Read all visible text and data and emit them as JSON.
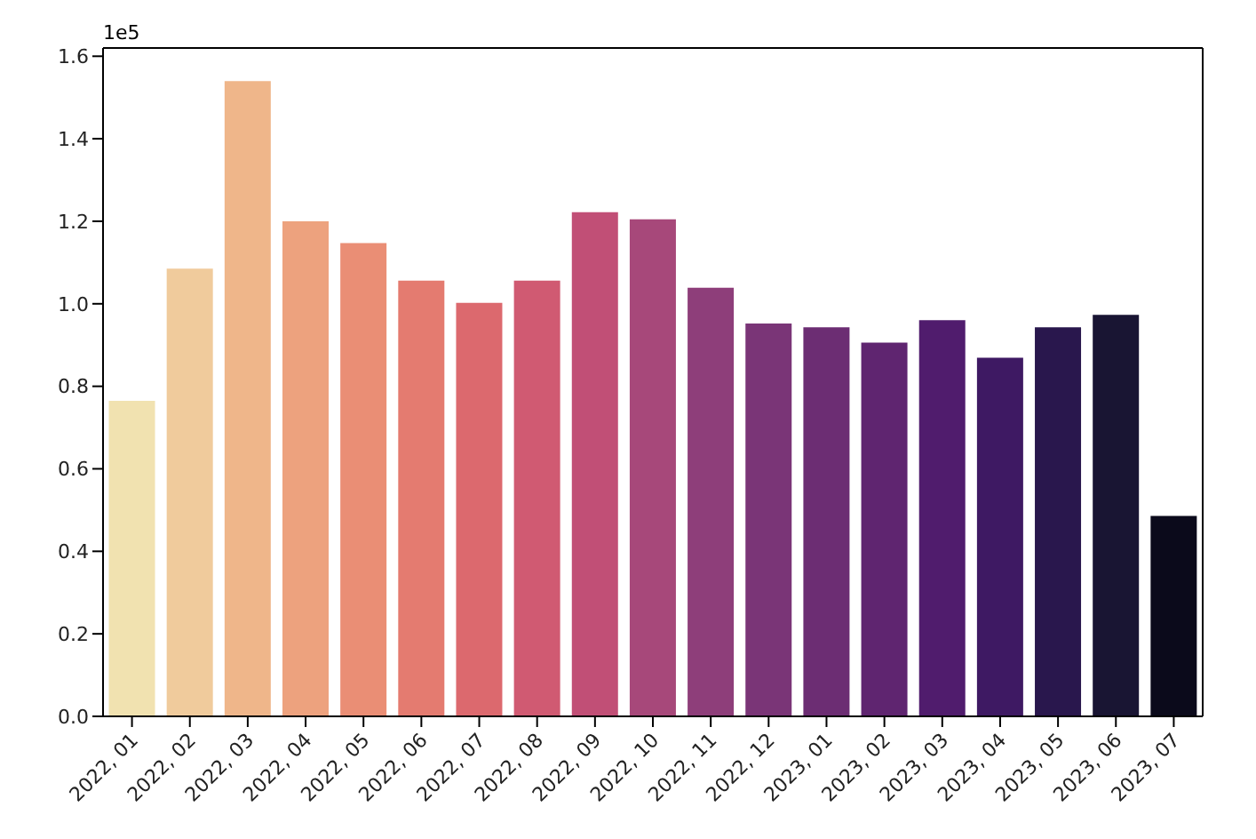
{
  "chart_data": {
    "type": "bar",
    "categories": [
      "2022, 01",
      "2022, 02",
      "2022, 03",
      "2022, 04",
      "2022, 05",
      "2022, 06",
      "2022, 07",
      "2022, 08",
      "2022, 09",
      "2022, 10",
      "2022, 11",
      "2022, 12",
      "2023, 01",
      "2023, 02",
      "2023, 03",
      "2023, 04",
      "2023, 05",
      "2023, 06",
      "2023, 07"
    ],
    "values": [
      0.765,
      1.085,
      1.54,
      1.2,
      1.147,
      1.056,
      1.002,
      1.056,
      1.222,
      1.205,
      1.039,
      0.952,
      0.943,
      0.906,
      0.96,
      0.869,
      0.943,
      0.973,
      0.486
    ],
    "colors": [
      "#f1e2b0",
      "#f0cb9c",
      "#efb68a",
      "#eda27e",
      "#ea8e75",
      "#e47b70",
      "#dc696e",
      "#d05a72",
      "#c14f76",
      "#a7487a",
      "#8e3e7a",
      "#7a3577",
      "#6c2d73",
      "#5f2570",
      "#501c6d",
      "#3e1963",
      "#29174d",
      "#191533",
      "#0b0a1b"
    ],
    "ylim": [
      0,
      1.62
    ],
    "yticks": [
      {
        "value": 0,
        "label": "0.0"
      },
      0.2,
      0.4,
      0.6,
      0.8,
      {
        "value": 1,
        "label": "1.0"
      },
      1.2,
      1.4,
      1.6
    ],
    "annotations": [
      "1e5"
    ],
    "grid": false
  }
}
